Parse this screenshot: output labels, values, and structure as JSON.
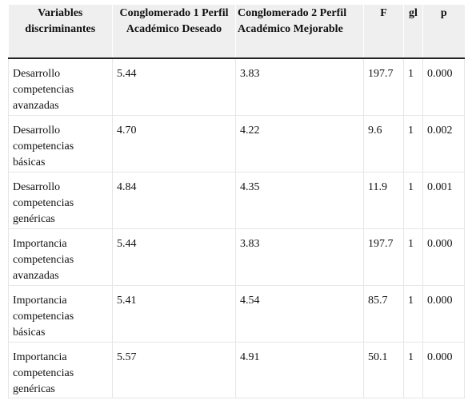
{
  "table": {
    "headers": [
      "Variables discriminantes",
      "Conglomerado 1 Perfil Académico Deseado",
      "Conglomerado 2 Perfil Académico Mejorable",
      "F",
      "gl",
      "p"
    ],
    "rows": [
      [
        "Desarrollo competencias avanzadas",
        "5.44",
        "3.83",
        "197.7",
        "1",
        "0.000"
      ],
      [
        "Desarrollo competencias básicas",
        "4.70",
        "4.22",
        "9.6",
        "1",
        "0.002"
      ],
      [
        "Desarrollo competencias genéricas",
        "4.84",
        "4.35",
        "11.9",
        "1",
        "0.001"
      ],
      [
        "Importancia competencias avanzadas",
        "5.44",
        "3.83",
        "197.7",
        "1",
        "0.000"
      ],
      [
        "Importancia competencias básicas",
        "5.41",
        "4.54",
        "85.7",
        "1",
        "0.000"
      ],
      [
        "Importancia competencias genéricas",
        "5.57",
        "4.91",
        "50.1",
        "1",
        "0.000"
      ]
    ]
  }
}
